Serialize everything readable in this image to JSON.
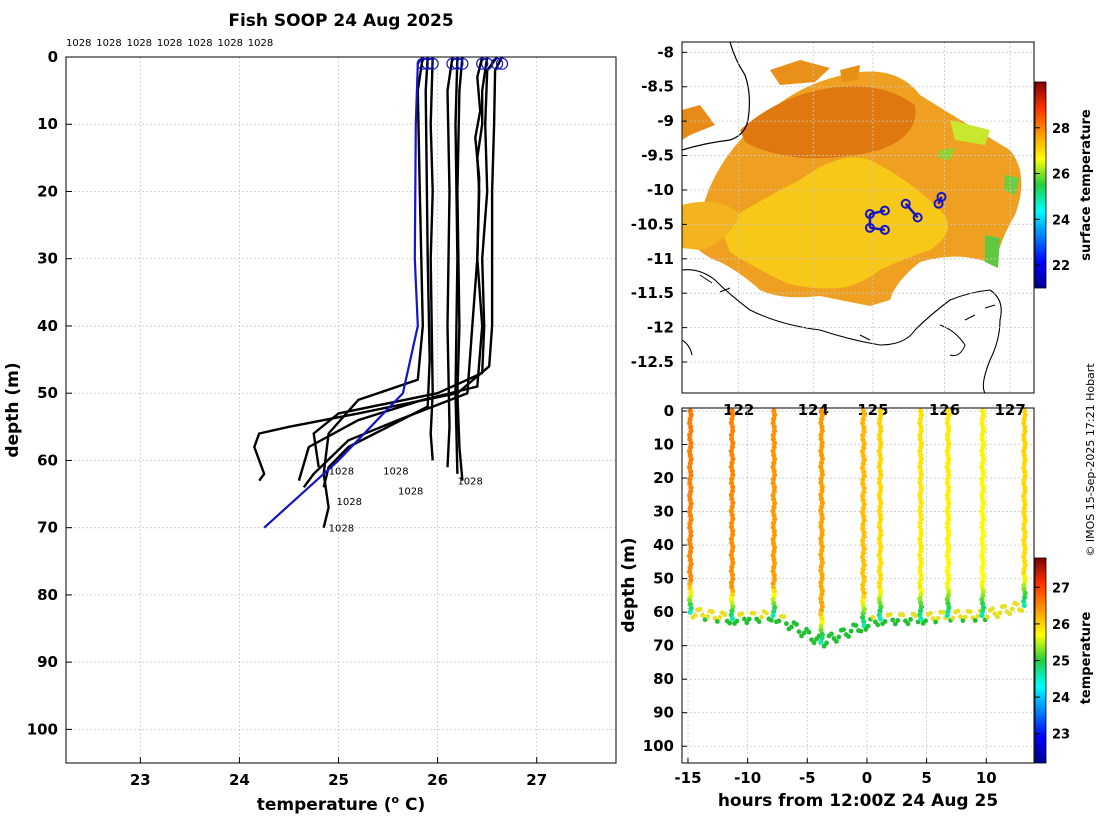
{
  "title": "Fish SOOP 24 Aug 2025",
  "top_labels": [
    "1028",
    "1028",
    "1028",
    "1028",
    "1028",
    "1028",
    "1028"
  ],
  "credit": "© IMOS 15-Sep-2025 17:21 Hobart",
  "colors": {
    "profile": "#000000",
    "mean": "#1414c8",
    "land": "#000000"
  },
  "chart_data": [
    {
      "type": "line",
      "name": "temperature-profiles",
      "xlabel": "temperature (o C)",
      "ylabel": "depth (m)",
      "xlim": [
        22.25,
        27.8
      ],
      "ylim": [
        105,
        0
      ],
      "xticks": [
        23,
        24,
        25,
        26,
        27
      ],
      "yticks": [
        0,
        10,
        20,
        30,
        40,
        50,
        60,
        70,
        80,
        90,
        100
      ],
      "grid": true,
      "series": [
        {
          "name": "profile-1",
          "surface_temp": 26.65,
          "bottom_depth": 64,
          "points": [
            [
              26.65,
              0
            ],
            [
              26.58,
              2
            ],
            [
              26.57,
              10
            ],
            [
              26.55,
              20
            ],
            [
              26.55,
              30
            ],
            [
              26.55,
              40
            ],
            [
              26.52,
              46
            ],
            [
              26.2,
              50
            ],
            [
              25.2,
              53
            ],
            [
              24.5,
              55
            ],
            [
              24.2,
              56
            ],
            [
              24.15,
              58
            ],
            [
              24.25,
              62
            ],
            [
              24.2,
              63
            ]
          ]
        },
        {
          "name": "profile-2",
          "surface_temp": 26.6,
          "bottom_depth": 61,
          "points": [
            [
              26.6,
              0
            ],
            [
              26.5,
              2
            ],
            [
              26.48,
              10
            ],
            [
              26.5,
              20
            ],
            [
              26.45,
              30
            ],
            [
              26.47,
              40
            ],
            [
              26.45,
              47
            ],
            [
              26.0,
              50
            ],
            [
              25.0,
              53
            ],
            [
              24.75,
              56
            ],
            [
              24.8,
              61
            ]
          ]
        },
        {
          "name": "profile-3",
          "surface_temp": 26.5,
          "bottom_depth": 63,
          "points": [
            [
              26.5,
              0
            ],
            [
              26.45,
              5
            ],
            [
              26.45,
              10
            ],
            [
              26.4,
              15
            ],
            [
              26.42,
              20
            ],
            [
              26.4,
              30
            ],
            [
              26.45,
              40
            ],
            [
              26.4,
              49
            ],
            [
              25.85,
              51
            ],
            [
              25.2,
              54
            ],
            [
              24.7,
              58
            ],
            [
              24.6,
              63
            ]
          ]
        },
        {
          "name": "profile-4",
          "surface_temp": 26.45,
          "bottom_depth": 64,
          "points": [
            [
              26.45,
              0
            ],
            [
              26.4,
              3
            ],
            [
              26.43,
              8
            ],
            [
              26.38,
              12
            ],
            [
              26.42,
              18
            ],
            [
              26.4,
              30
            ],
            [
              26.35,
              40
            ],
            [
              26.3,
              50
            ],
            [
              25.6,
              54
            ],
            [
              25.1,
              57
            ],
            [
              24.75,
              62
            ],
            [
              24.65,
              64
            ]
          ]
        },
        {
          "name": "profile-5",
          "surface_temp": 26.25,
          "bottom_depth": 63,
          "points": [
            [
              26.25,
              0
            ],
            [
              26.22,
              5
            ],
            [
              26.2,
              20
            ],
            [
              26.22,
              40
            ],
            [
              26.2,
              50
            ],
            [
              26.22,
              58
            ],
            [
              26.25,
              63
            ]
          ]
        },
        {
          "name": "profile-6",
          "surface_temp": 26.2,
          "bottom_depth": 62,
          "points": [
            [
              26.2,
              0
            ],
            [
              26.18,
              10
            ],
            [
              26.2,
              30
            ],
            [
              26.18,
              50
            ],
            [
              26.2,
              62
            ]
          ]
        },
        {
          "name": "profile-7",
          "surface_temp": 26.15,
          "bottom_depth": 61,
          "points": [
            [
              26.15,
              0
            ],
            [
              26.1,
              5
            ],
            [
              26.12,
              20
            ],
            [
              26.1,
              40
            ],
            [
              26.12,
              55
            ],
            [
              26.1,
              61
            ]
          ]
        },
        {
          "name": "profile-8",
          "surface_temp": 25.95,
          "bottom_depth": 60,
          "points": [
            [
              25.95,
              0
            ],
            [
              25.93,
              10
            ],
            [
              25.95,
              20
            ],
            [
              25.93,
              30
            ],
            [
              25.94,
              40
            ],
            [
              25.95,
              50
            ],
            [
              25.93,
              56
            ],
            [
              25.95,
              60
            ]
          ]
        },
        {
          "name": "profile-9",
          "surface_temp": 25.9,
          "bottom_depth": 64,
          "points": [
            [
              25.9,
              0
            ],
            [
              25.88,
              5
            ],
            [
              25.9,
              30
            ],
            [
              25.92,
              45
            ],
            [
              25.9,
              52
            ],
            [
              25.5,
              55
            ],
            [
              25.1,
              58
            ],
            [
              24.9,
              61
            ],
            [
              24.85,
              64
            ]
          ]
        },
        {
          "name": "profile-10",
          "surface_temp": 25.85,
          "bottom_depth": 70,
          "points": [
            [
              25.85,
              0
            ],
            [
              25.8,
              5
            ],
            [
              25.82,
              20
            ],
            [
              25.85,
              40
            ],
            [
              25.8,
              48
            ],
            [
              25.2,
              51
            ],
            [
              24.9,
              56
            ],
            [
              24.85,
              62
            ],
            [
              24.9,
              67
            ],
            [
              24.85,
              70
            ]
          ]
        },
        {
          "name": "mean-profile",
          "points": [
            [
              25.85,
              0
            ],
            [
              25.8,
              1
            ],
            [
              25.78,
              10
            ],
            [
              25.77,
              30
            ],
            [
              25.8,
              40
            ],
            [
              25.65,
              50
            ],
            [
              25.0,
              60
            ],
            [
              24.25,
              70
            ]
          ]
        }
      ],
      "depth_labels": [
        {
          "text": "1028",
          "t": 24.9,
          "d": 61.5
        },
        {
          "text": "1028",
          "t": 25.45,
          "d": 61.5
        },
        {
          "text": "1028",
          "t": 24.98,
          "d": 66
        },
        {
          "text": "1028",
          "t": 25.6,
          "d": 64.5
        },
        {
          "text": "1028",
          "t": 26.2,
          "d": 63
        },
        {
          "text": "1028",
          "t": 24.9,
          "d": 70
        }
      ]
    },
    {
      "type": "heatmap",
      "name": "surface-temperature-map",
      "x_ticks": [
        "122",
        "124",
        "125",
        "126",
        "127"
      ],
      "y_ticks": [
        "-8",
        "-8.5",
        "-9",
        "-9.5",
        "-10",
        "-10.5",
        "-11",
        "-11.5",
        "-12",
        "-12.5"
      ],
      "colorbar_label": "surface temperature",
      "colorbar_ticks": [
        "22",
        "24",
        "26",
        "28"
      ],
      "track": [
        [
          124.7,
          -10.35
        ],
        [
          124.95,
          -10.3
        ],
        [
          124.7,
          -10.55
        ],
        [
          124.95,
          -10.58
        ],
        [
          125.3,
          -10.2
        ],
        [
          125.5,
          -10.4
        ],
        [
          125.9,
          -10.1
        ],
        [
          125.85,
          -10.2
        ]
      ]
    },
    {
      "type": "scatter",
      "name": "depth-time-section",
      "xlabel": "hours from 12:00Z 24 Aug 25",
      "ylabel": "depth (m)",
      "xlim": [
        -15.5,
        14
      ],
      "ylim": [
        105,
        0
      ],
      "xticks": [
        -15,
        -10,
        -5,
        0,
        5,
        10
      ],
      "yticks": [
        0,
        10,
        20,
        30,
        40,
        50,
        60,
        70,
        80,
        90,
        100
      ],
      "colorbar_label": "temperature",
      "colorbar_ticks": [
        "23",
        "24",
        "25",
        "26",
        "27"
      ],
      "casts": [
        {
          "hour": -14.8,
          "bottom_depth": 60,
          "surface_temp": 26.6
        },
        {
          "hour": -11.3,
          "bottom_depth": 62,
          "surface_temp": 26.55
        },
        {
          "hour": -7.8,
          "bottom_depth": 61,
          "surface_temp": 26.45
        },
        {
          "hour": -3.8,
          "bottom_depth": 69,
          "surface_temp": 26.4
        },
        {
          "hour": -0.3,
          "bottom_depth": 64,
          "surface_temp": 26.2
        },
        {
          "hour": 1.1,
          "bottom_depth": 62,
          "surface_temp": 26.0
        },
        {
          "hour": 4.5,
          "bottom_depth": 62,
          "surface_temp": 25.9
        },
        {
          "hour": 6.8,
          "bottom_depth": 61,
          "surface_temp": 25.85
        },
        {
          "hour": 9.7,
          "bottom_depth": 61,
          "surface_temp": 25.8
        },
        {
          "hour": 13.2,
          "bottom_depth": 58,
          "surface_temp": 26.0
        }
      ]
    }
  ]
}
